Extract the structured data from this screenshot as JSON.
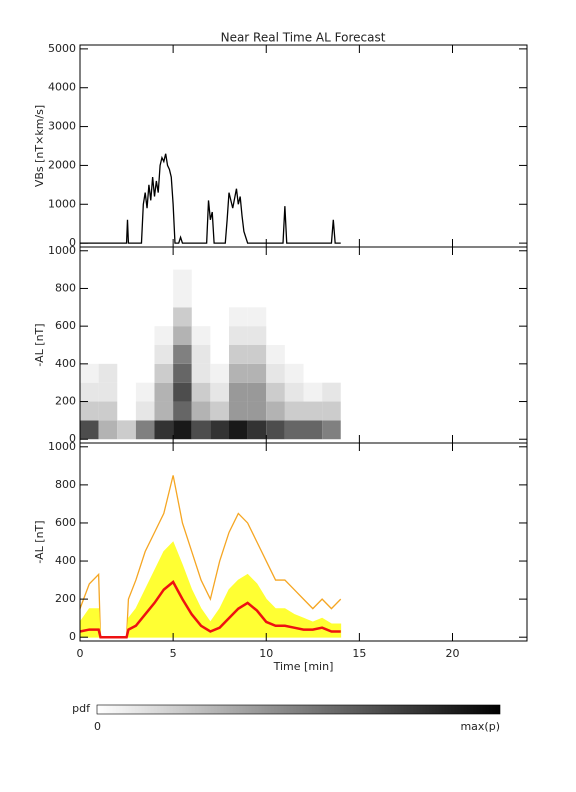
{
  "chart_data": [
    {
      "type": "line",
      "title": "Near Real Time AL Forecast",
      "ylabel": "VBs [nT×km/s]",
      "ylim": [
        -100,
        5100
      ],
      "yticks": [
        0,
        1000,
        2000,
        3000,
        4000,
        5000
      ],
      "x": [
        0,
        2.5,
        2.55,
        2.6,
        3.3,
        3.4,
        3.5,
        3.6,
        3.7,
        3.8,
        3.9,
        4.0,
        4.1,
        4.2,
        4.3,
        4.4,
        4.5,
        4.6,
        4.7,
        4.8,
        4.9,
        5.0,
        5.1,
        5.3,
        5.4,
        5.5,
        6.5,
        6.8,
        6.9,
        7.0,
        7.1,
        7.2,
        7.3,
        7.8,
        7.9,
        8.0,
        8.2,
        8.4,
        8.5,
        8.6,
        8.7,
        8.8,
        9.0,
        9.2,
        9.4,
        9.6,
        10.9,
        11.0,
        11.1,
        13.5,
        13.6,
        13.7,
        14.0
      ],
      "series": [
        {
          "color": "#000000",
          "values": [
            0,
            0,
            600,
            0,
            0,
            1000,
            1300,
            900,
            1500,
            1100,
            1700,
            1200,
            1600,
            1300,
            2000,
            2200,
            2100,
            2300,
            2000,
            1900,
            1700,
            1000,
            0,
            0,
            150,
            0,
            0,
            0,
            1100,
            600,
            800,
            0,
            0,
            0,
            600,
            1300,
            900,
            1400,
            1000,
            1200,
            700,
            300,
            0,
            0,
            0,
            0,
            0,
            950,
            0,
            0,
            600,
            0,
            0
          ]
        }
      ]
    },
    {
      "type": "heatmap",
      "ylabel": "-AL [nT]",
      "ylim": [
        -20,
        1020
      ],
      "yticks": [
        0,
        200,
        400,
        600,
        800,
        1000
      ],
      "x_bins": [
        0,
        1,
        2,
        3,
        4,
        5,
        6,
        7,
        8,
        9,
        10,
        11,
        12,
        13,
        14
      ],
      "y_bins": [
        0,
        100,
        200,
        300,
        400,
        500,
        600,
        700,
        800,
        900
      ],
      "z": [
        [
          0.7,
          0.3,
          0.2,
          0.5,
          0.8,
          0.9,
          0.7,
          0.8,
          0.9,
          0.8,
          0.7,
          0.6,
          0.6,
          0.5
        ],
        [
          0.2,
          0.2,
          0,
          0.1,
          0.3,
          0.6,
          0.3,
          0.2,
          0.4,
          0.4,
          0.3,
          0.2,
          0.2,
          0.2
        ],
        [
          0.1,
          0.1,
          0,
          0.05,
          0.3,
          0.7,
          0.2,
          0.1,
          0.4,
          0.4,
          0.2,
          0.1,
          0.05,
          0.1
        ],
        [
          0.05,
          0.1,
          0,
          0,
          0.2,
          0.6,
          0.1,
          0.05,
          0.3,
          0.3,
          0.1,
          0.05,
          0,
          0
        ],
        [
          0,
          0,
          0,
          0,
          0.1,
          0.5,
          0.1,
          0,
          0.2,
          0.2,
          0.05,
          0,
          0,
          0
        ],
        [
          0,
          0,
          0,
          0,
          0.05,
          0.3,
          0.05,
          0,
          0.1,
          0.1,
          0,
          0,
          0,
          0
        ],
        [
          0,
          0,
          0,
          0,
          0,
          0.2,
          0,
          0,
          0.05,
          0.05,
          0,
          0,
          0,
          0
        ],
        [
          0,
          0,
          0,
          0,
          0,
          0.05,
          0,
          0,
          0,
          0,
          0,
          0,
          0,
          0
        ],
        [
          0,
          0,
          0,
          0,
          0,
          0.05,
          0,
          0,
          0,
          0,
          0,
          0,
          0,
          0
        ]
      ]
    },
    {
      "type": "line",
      "ylabel": "-AL [nT]",
      "xlabel": "Time [min]",
      "xlim": [
        0,
        24
      ],
      "xticks": [
        0,
        5,
        10,
        15,
        20
      ],
      "ylim": [
        -20,
        1020
      ],
      "yticks": [
        0,
        200,
        400,
        600,
        800,
        1000
      ],
      "x": [
        0,
        0.5,
        1,
        1.1,
        2.5,
        2.6,
        3,
        3.5,
        4,
        4.5,
        5,
        5.5,
        6,
        6.5,
        7,
        7.5,
        8,
        8.5,
        9,
        9.5,
        10,
        10.5,
        11,
        11.5,
        12,
        12.5,
        13,
        13.5,
        14
      ],
      "series": [
        {
          "color": "#f5a623",
          "values": [
            150,
            280,
            330,
            0,
            0,
            200,
            300,
            450,
            550,
            650,
            850,
            600,
            450,
            300,
            200,
            400,
            550,
            650,
            600,
            500,
            400,
            300,
            300,
            250,
            200,
            150,
            200,
            150,
            200
          ]
        },
        {
          "color": "#ffff33",
          "fill": true,
          "values": [
            80,
            150,
            150,
            0,
            0,
            100,
            150,
            250,
            350,
            450,
            500,
            380,
            250,
            150,
            80,
            150,
            250,
            300,
            330,
            280,
            200,
            150,
            150,
            120,
            100,
            80,
            100,
            70,
            70
          ]
        },
        {
          "color": "#ee1111",
          "width": 2.5,
          "values": [
            30,
            40,
            40,
            0,
            0,
            40,
            60,
            120,
            180,
            250,
            290,
            200,
            120,
            60,
            30,
            50,
            100,
            150,
            180,
            140,
            80,
            60,
            60,
            50,
            40,
            40,
            50,
            30,
            30
          ]
        }
      ]
    }
  ],
  "colorbar": {
    "label": "pdf",
    "min_label": "0",
    "max_label": "max(p)"
  }
}
